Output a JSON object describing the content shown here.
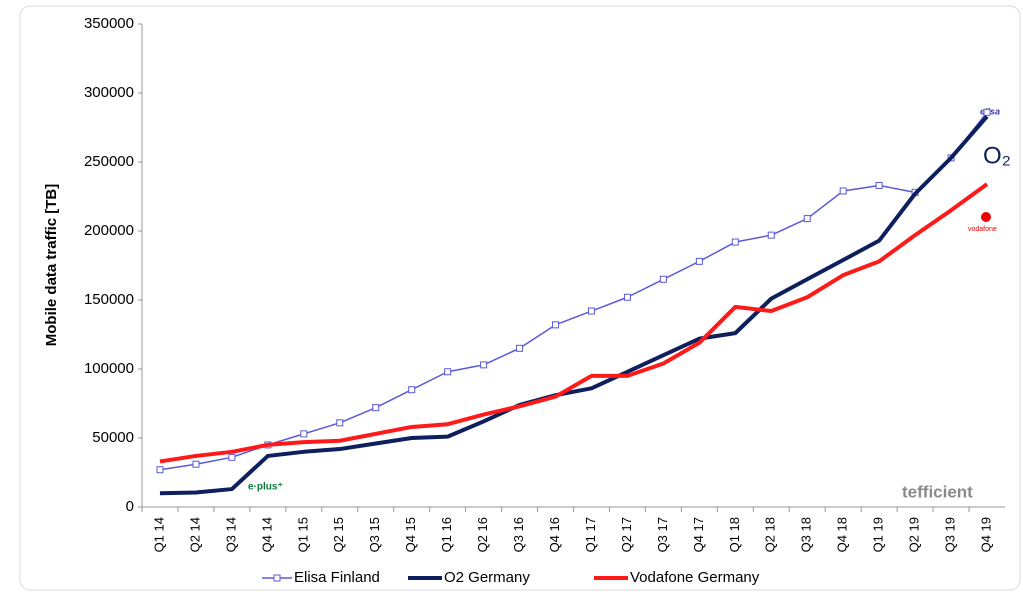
{
  "chart_data": {
    "type": "line",
    "y_label": "Mobile data traffic [TB]",
    "categories": [
      "Q1 14",
      "Q2 14",
      "Q3 14",
      "Q4 14",
      "Q1 15",
      "Q2 15",
      "Q3 15",
      "Q4 15",
      "Q1 16",
      "Q2 16",
      "Q3 16",
      "Q4 16",
      "Q1 17",
      "Q2 17",
      "Q3 17",
      "Q4 17",
      "Q1 18",
      "Q2 18",
      "Q3 18",
      "Q4 18",
      "Q1 19",
      "Q2 19",
      "Q3 19",
      "Q4 19"
    ],
    "series": [
      {
        "name": "Elisa Finland",
        "color": "#5a5ad8",
        "marker": "square",
        "values": [
          27000,
          31000,
          36000,
          45000,
          53000,
          61000,
          72000,
          85000,
          98000,
          103000,
          115000,
          132000,
          142000,
          152000,
          165000,
          178000,
          192000,
          197000,
          209000,
          229000,
          233000,
          228000,
          253000,
          286000
        ]
      },
      {
        "name": "O2 Germany",
        "color": "#0d1f5c",
        "values": [
          10000,
          10500,
          13000,
          37000,
          40000,
          42000,
          46000,
          50000,
          51000,
          62000,
          74000,
          81000,
          86000,
          98000,
          110000,
          122000,
          126000,
          151000,
          165000,
          179000,
          193000,
          227000,
          253000,
          283000
        ]
      },
      {
        "name": "Vodafone Germany",
        "color": "#ff1a1a",
        "values": [
          33000,
          37000,
          40000,
          45000,
          47000,
          48000,
          53000,
          58000,
          60000,
          67000,
          73000,
          80000,
          95000,
          95000,
          104000,
          119000,
          145000,
          142000,
          152000,
          168000,
          178000,
          197000,
          215000,
          234000
        ]
      }
    ],
    "ylim": [
      0,
      350000
    ],
    "yticks": [
      0,
      50000,
      100000,
      150000,
      200000,
      250000,
      300000,
      350000
    ],
    "legend": "bottom",
    "annotations": [
      "elisa",
      "O₂",
      "vodafone",
      "e·plus⁺",
      "tefficient"
    ]
  }
}
